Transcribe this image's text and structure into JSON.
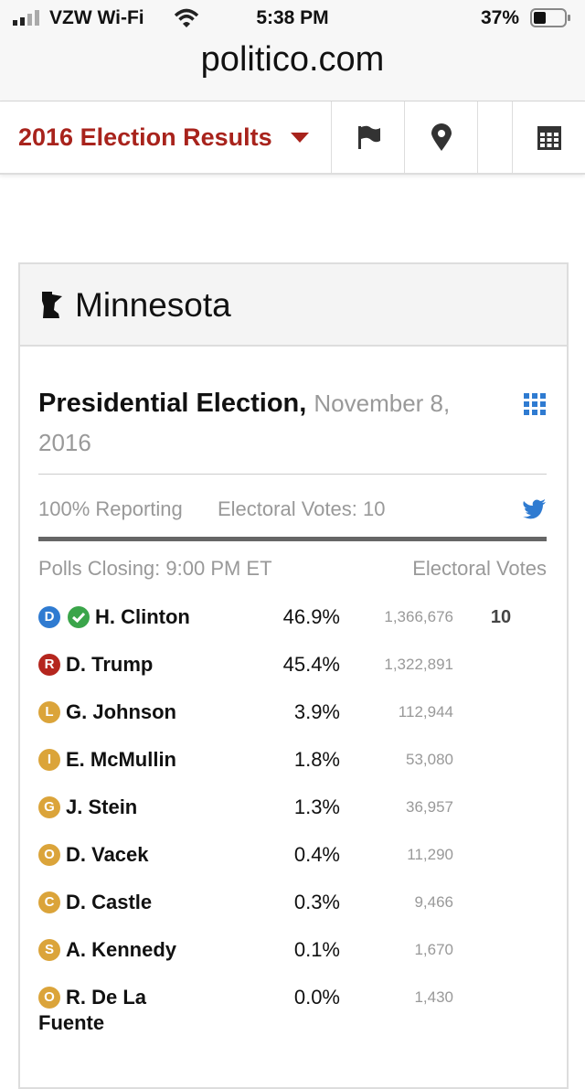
{
  "status_bar": {
    "carrier": "VZW Wi-Fi",
    "time": "5:38 PM",
    "battery": "37%"
  },
  "browser": {
    "url": "politico.com"
  },
  "nav": {
    "title": "2016 Election Results"
  },
  "state": {
    "name": "Minnesota"
  },
  "race": {
    "title": "Presidential Election,",
    "date": "November 8, 2016",
    "reporting": "100% Reporting",
    "electoral_votes": "Electoral Votes: 10",
    "polls_closing": "Polls Closing: 9:00 PM ET",
    "ev_header": "Electoral Votes"
  },
  "candidates": [
    {
      "party": "D",
      "color": "#2f7bd1",
      "name": "H. Clinton",
      "percent": "46.9%",
      "votes": "1,366,676",
      "electoral": "10",
      "winner": true
    },
    {
      "party": "R",
      "color": "#b5261e",
      "name": "D. Trump",
      "percent": "45.4%",
      "votes": "1,322,891"
    },
    {
      "party": "L",
      "color": "#dba43a",
      "name": "G. Johnson",
      "percent": "3.9%",
      "votes": "112,944"
    },
    {
      "party": "I",
      "color": "#dba43a",
      "name": "E. McMullin",
      "percent": "1.8%",
      "votes": "53,080"
    },
    {
      "party": "G",
      "color": "#dba43a",
      "name": "J. Stein",
      "percent": "1.3%",
      "votes": "36,957"
    },
    {
      "party": "O",
      "color": "#dba43a",
      "name": "D. Vacek",
      "percent": "0.4%",
      "votes": "11,290"
    },
    {
      "party": "C",
      "color": "#dba43a",
      "name": "D. Castle",
      "percent": "0.3%",
      "votes": "9,466"
    },
    {
      "party": "S",
      "color": "#dba43a",
      "name": "A. Kennedy",
      "percent": "0.1%",
      "votes": "1,670"
    },
    {
      "party": "O",
      "color": "#dba43a",
      "name": "R. De La Fuente",
      "percent": "0.0%",
      "votes": "1,430"
    }
  ]
}
